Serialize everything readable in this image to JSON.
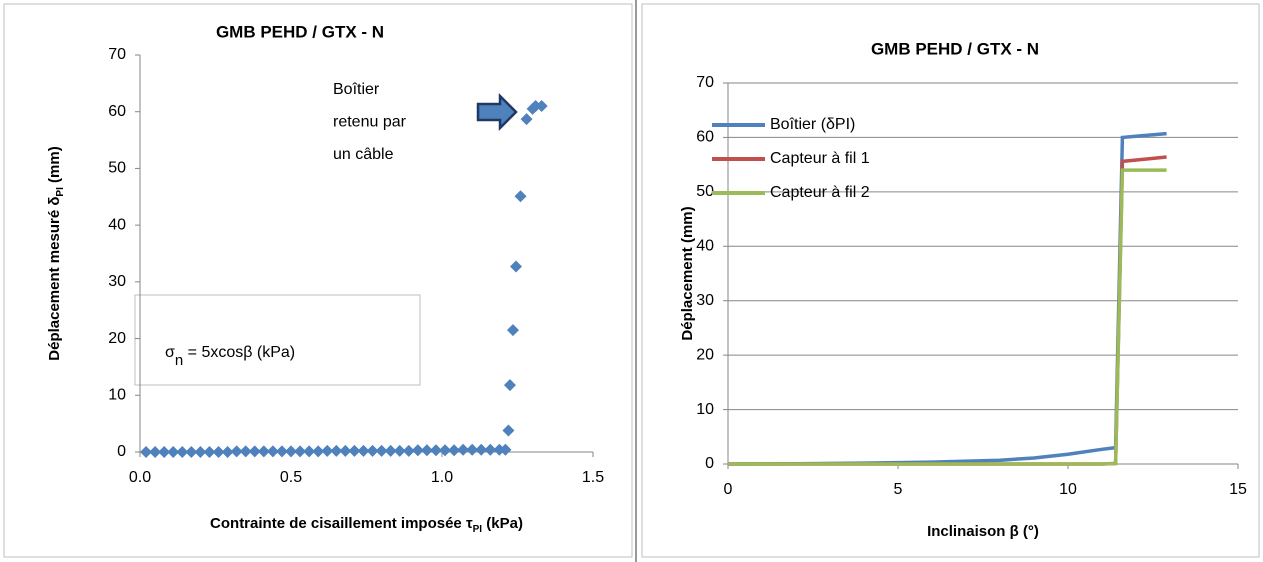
{
  "chart_data": [
    {
      "type": "scatter",
      "title": "GMB PEHD / GTX - N",
      "x_label": [
        "Contrainte de cisaillement imposée τ",
        "PI",
        " (kPa)"
      ],
      "y_label": [
        "Déplacement mesuré  δ",
        "PI",
        " (mm)"
      ],
      "annotations": [
        "Boîtier",
        "retenu par",
        "un câble"
      ],
      "formula": [
        "σ",
        "n",
        " = 5xcosβ (kPa)"
      ],
      "color": "#4f81bd",
      "x": [
        0.02,
        0.05,
        0.08,
        0.11,
        0.14,
        0.17,
        0.2,
        0.23,
        0.26,
        0.29,
        0.32,
        0.35,
        0.38,
        0.41,
        0.44,
        0.47,
        0.5,
        0.53,
        0.56,
        0.59,
        0.62,
        0.65,
        0.68,
        0.71,
        0.74,
        0.77,
        0.8,
        0.83,
        0.86,
        0.89,
        0.92,
        0.95,
        0.98,
        1.01,
        1.04,
        1.07,
        1.1,
        1.13,
        1.16,
        1.19,
        1.21,
        1.22,
        1.225,
        1.235,
        1.245,
        1.26,
        1.28,
        1.3,
        1.31,
        1.33
      ],
      "values": [
        0,
        0,
        0,
        0,
        0,
        0,
        0,
        0,
        0,
        0,
        0.1,
        0.1,
        0.1,
        0.1,
        0.1,
        0.1,
        0.1,
        0.1,
        0.1,
        0.1,
        0.2,
        0.2,
        0.2,
        0.2,
        0.2,
        0.2,
        0.2,
        0.2,
        0.2,
        0.2,
        0.3,
        0.3,
        0.3,
        0.3,
        0.3,
        0.4,
        0.4,
        0.4,
        0.4,
        0.4,
        0.4,
        3.8,
        11.8,
        21.5,
        32.7,
        45.1,
        58.7,
        60.5,
        61,
        61
      ],
      "xlim": [
        0,
        1.5
      ],
      "xticks": [
        {
          "value": 0,
          "label": "0.0"
        },
        0.5,
        {
          "value": 1,
          "label": "1.0"
        },
        1.5
      ],
      "ylim": [
        0,
        70
      ],
      "yticks": [
        0,
        10,
        20,
        30,
        40,
        50,
        60,
        70
      ],
      "grid": false
    },
    {
      "type": "line",
      "title": "GMB PEHD / GTX - N",
      "x_label": [
        "Inclinaison β (°)"
      ],
      "y_label": [
        "Déplacement (mm)"
      ],
      "x": [
        0,
        2,
        4,
        6,
        8,
        9,
        10,
        11,
        11.4,
        11.6,
        12.9
      ],
      "series": [
        {
          "name": "Boîtier (δPI)",
          "color": "#4f81bd",
          "values": [
            0,
            0.05,
            0.15,
            0.35,
            0.7,
            1.1,
            1.8,
            2.7,
            3.0,
            60,
            60.7
          ]
        },
        {
          "name": "Capteur à fil 1",
          "color": "#c0504d",
          "values": [
            0,
            0,
            0,
            0,
            0,
            0,
            0,
            0,
            0.1,
            55.6,
            56.4
          ]
        },
        {
          "name": "Capteur à fil 2",
          "color": "#9bbb59",
          "values": [
            0,
            0,
            0,
            0,
            0,
            0,
            0,
            0,
            0.1,
            54,
            54
          ]
        }
      ],
      "xlim": [
        0,
        15
      ],
      "xticks": [
        0,
        5,
        10,
        15
      ],
      "ylim": [
        0,
        70
      ],
      "yticks": [
        0,
        10,
        20,
        30,
        40,
        50,
        60,
        70
      ],
      "grid": true,
      "legend": "upper-left"
    }
  ]
}
